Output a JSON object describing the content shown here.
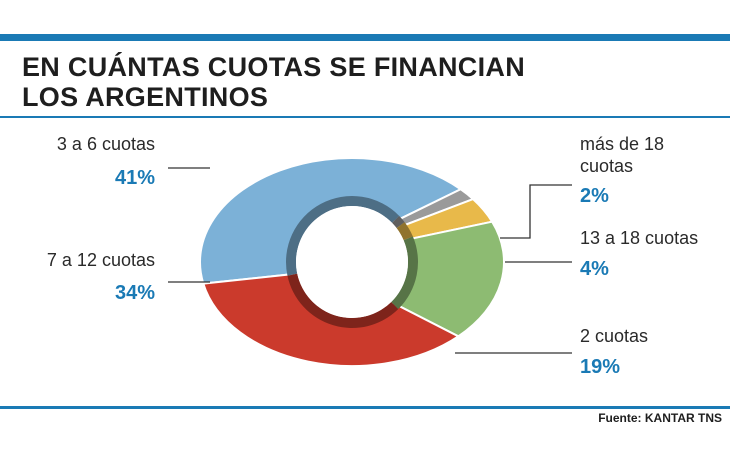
{
  "header": {
    "title_line1": "EN CUÁNTAS CUOTAS SE FINANCIAN",
    "title_line2": "LOS ARGENTINOS"
  },
  "source": "Fuente: KANTAR TNS",
  "colors": {
    "accent": "#1a7ab5",
    "blue": "#7cb1d7",
    "gray": "#9a9a9a",
    "yellow": "#e8b94a",
    "green": "#8dbb72",
    "red": "#cb3a2c"
  },
  "chart_data": {
    "type": "pie",
    "donut": true,
    "slices": [
      {
        "label": "3 a 6 cuotas",
        "value": 41,
        "value_label": "41%",
        "color": "#7cb1d7"
      },
      {
        "label": "más de 18 cuotas",
        "value": 2,
        "value_label": "2%",
        "color": "#9a9a9a"
      },
      {
        "label": "13 a 18 cuotas",
        "value": 4,
        "value_label": "4%",
        "color": "#e8b94a"
      },
      {
        "label": "2 cuotas",
        "value": 19,
        "value_label": "19%",
        "color": "#8dbb72"
      },
      {
        "label": "7 a 12 cuotas",
        "value": 34,
        "value_label": "34%",
        "color": "#cb3a2c"
      }
    ]
  }
}
